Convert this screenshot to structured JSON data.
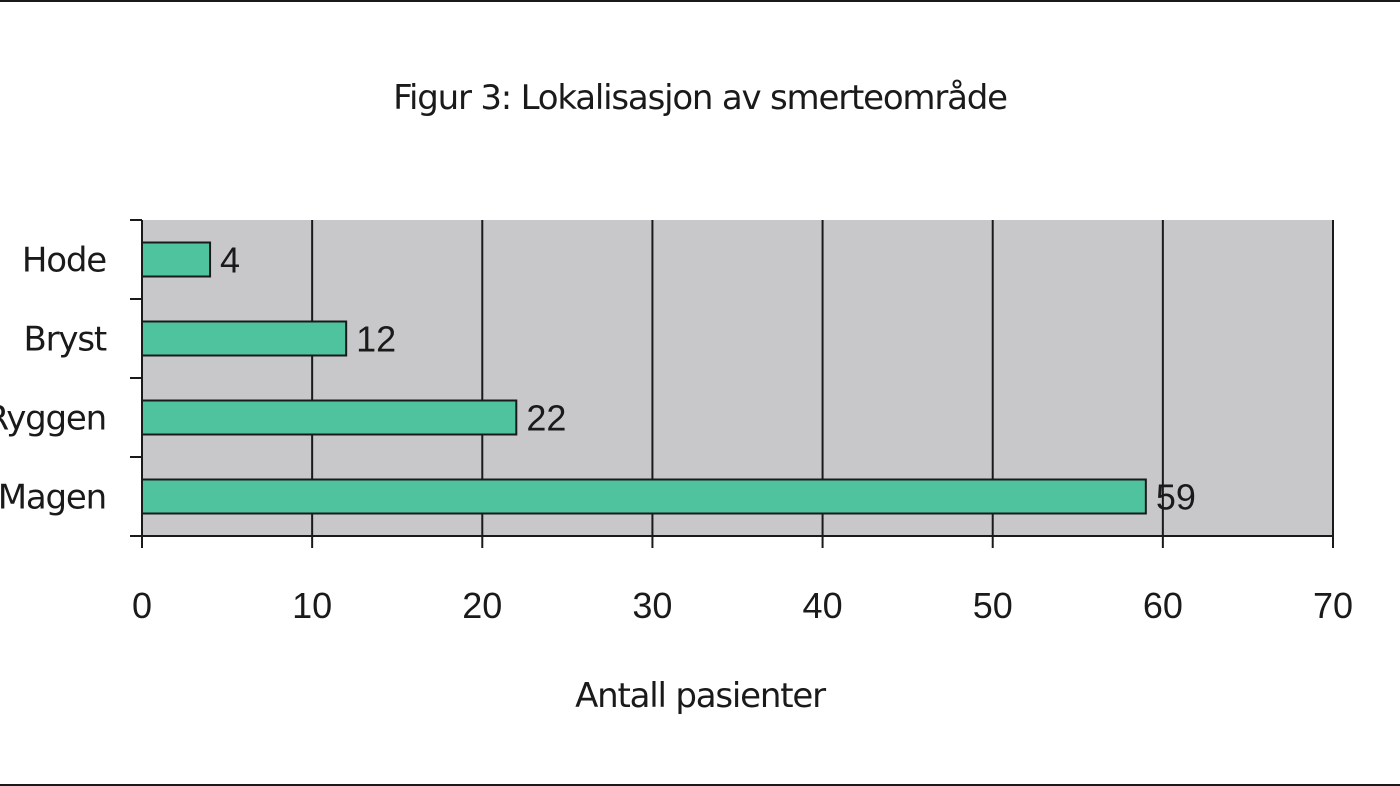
{
  "chart_data": {
    "type": "bar",
    "orientation": "horizontal",
    "title": "Figur 3: Lokalisasjon av smerteområde",
    "xlabel": "Antall pasienter",
    "ylabel": "",
    "categories": [
      "Hode",
      "Bryst",
      "Ryggen",
      "Magen"
    ],
    "values": [
      4,
      12,
      22,
      59
    ],
    "data_labels": [
      "4",
      "12",
      "22",
      "59"
    ],
    "xlim": [
      0,
      70
    ],
    "x_ticks": [
      0,
      10,
      20,
      30,
      40,
      50,
      60,
      70
    ],
    "x_tick_labels": [
      "0",
      "10",
      "20",
      "30",
      "40",
      "50",
      "60",
      "70"
    ],
    "grid": "vertical",
    "legend": "none",
    "colors": {
      "bar_fill": "#4fc29e",
      "bar_stroke": "#1a1a1a",
      "plot_background": "#c8c8ca",
      "grid": "#1a1a1a"
    }
  }
}
